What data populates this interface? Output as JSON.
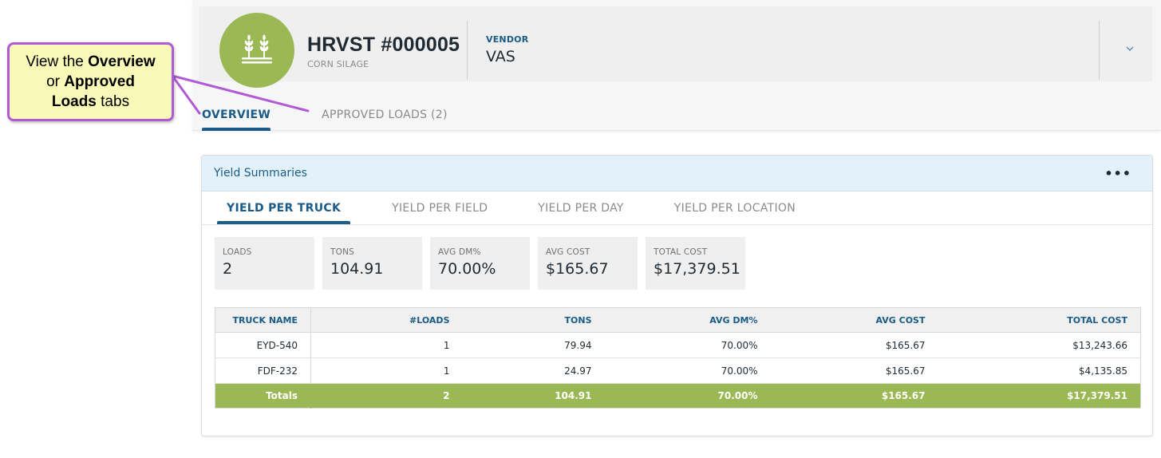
{
  "callout": {
    "line1_pre": "View the ",
    "line1_bold": "Overview",
    "line2_pre": "or ",
    "line2_bold": "Approved",
    "line3_bold": "Loads",
    "line3_post": " tabs"
  },
  "header": {
    "title": "HRVST #000005",
    "subtitle": "CORN SILAGE",
    "vendor_label": "VENDOR",
    "vendor_value": "VAS",
    "avatar_icon": "wheat-icon",
    "expand_icon": "chevron-down-icon"
  },
  "page_tabs": [
    {
      "label": "OVERVIEW",
      "active": true
    },
    {
      "label": "APPROVED LOADS (2)",
      "active": false
    }
  ],
  "panel": {
    "title": "Yield Summaries",
    "menu_icon": "more-horizontal-icon",
    "tabs": [
      {
        "label": "YIELD PER TRUCK",
        "active": true
      },
      {
        "label": "YIELD PER FIELD",
        "active": false
      },
      {
        "label": "YIELD PER DAY",
        "active": false
      },
      {
        "label": "YIELD PER LOCATION",
        "active": false
      }
    ],
    "stats": [
      {
        "label": "LOADS",
        "value": "2"
      },
      {
        "label": "TONS",
        "value": "104.91"
      },
      {
        "label": "AVG DM%",
        "value": "70.00%"
      },
      {
        "label": "AVG COST",
        "value": "$165.67"
      },
      {
        "label": "TOTAL COST",
        "value": "$17,379.51"
      }
    ],
    "table": {
      "columns": [
        "TRUCK NAME",
        "#LOADS",
        "TONS",
        "AVG DM%",
        "AVG COST",
        "TOTAL COST"
      ],
      "rows": [
        [
          "EYD-540",
          "1",
          "79.94",
          "70.00%",
          "$165.67",
          "$13,243.66"
        ],
        [
          "FDF-232",
          "1",
          "24.97",
          "70.00%",
          "$165.67",
          "$4,135.85"
        ]
      ],
      "totals": [
        "Totals",
        "2",
        "104.91",
        "70.00%",
        "$165.67",
        "$17,379.51"
      ]
    }
  },
  "colors": {
    "accent_blue": "#1a5c87",
    "brand_green": "#9ab955",
    "callout_fill": "#fafab8",
    "callout_border": "#b05ad6"
  }
}
